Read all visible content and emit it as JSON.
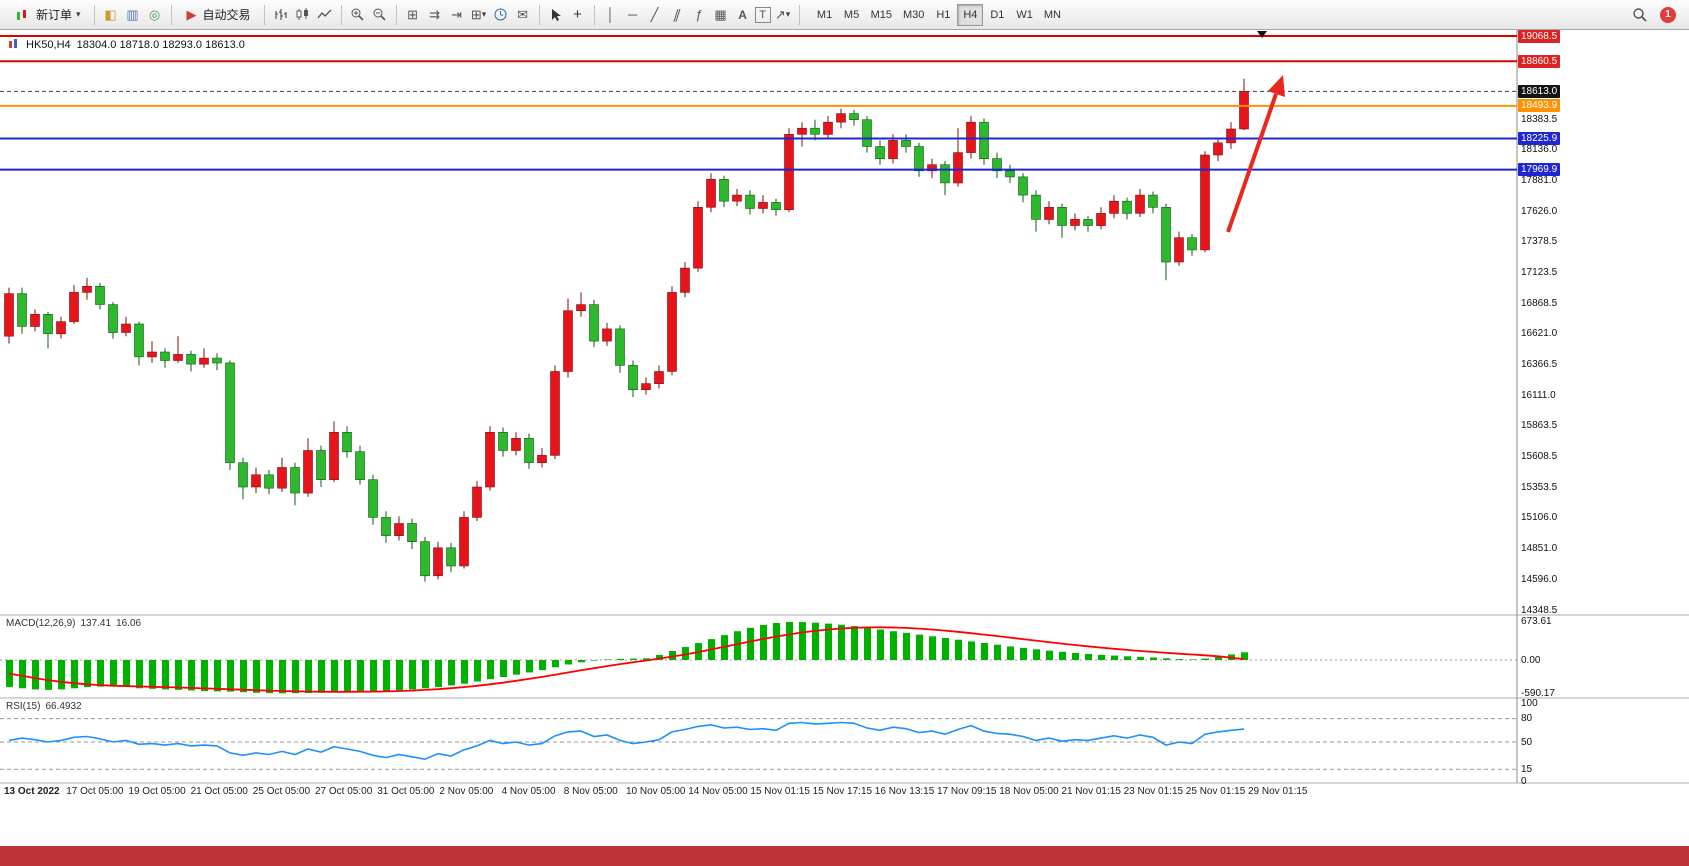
{
  "window": {
    "bottom_bar_color": "#bf3338"
  },
  "toolbar": {
    "new_order_label": "新订单",
    "auto_trading_label": "自动交易",
    "timeframes": [
      "M1",
      "M5",
      "M15",
      "M30",
      "H1",
      "H4",
      "D1",
      "W1",
      "MN"
    ],
    "active_timeframe": "H4",
    "notification_count": "1"
  },
  "chart": {
    "symbol_period": "HK50,H4",
    "ohlc_text": "18304.0 18718.0 18293.0 18613.0"
  },
  "chart_data": {
    "type": "candlestick",
    "symbol": "HK50",
    "timeframe": "H4",
    "last_ohlc": {
      "open": 18304.0,
      "high": 18718.0,
      "low": 18293.0,
      "close": 18613.0
    },
    "current_price": 18613.0,
    "price_axis": {
      "min": 14348.5,
      "max": 19068.5
    },
    "colors": {
      "up": "#e8141c",
      "down": "#2eb82e",
      "level_red": "#e00000",
      "level_orange": "#ff9100",
      "level_blue": "#2026d2",
      "macd_hist": "#00b200",
      "macd_signal": "#ff0000",
      "rsi": "#1e90ff",
      "arrow": "#e8281e"
    },
    "price_labels": [
      {
        "text": "19068.5",
        "price": 19068.5,
        "badge": "red"
      },
      {
        "text": "18860.5",
        "price": 18860.5,
        "badge": "red"
      },
      {
        "text": "18613.0",
        "price": 18613.0,
        "badge": "black"
      },
      {
        "text": "18493.9",
        "price": 18493.9,
        "badge": "orange"
      },
      {
        "text": "18383.5",
        "price": 18383.5,
        "badge": null
      },
      {
        "text": "18225.9",
        "price": 18225.9,
        "badge": "blue"
      },
      {
        "text": "18136.0",
        "price": 18136.0,
        "badge": null
      },
      {
        "text": "17969.9",
        "price": 17969.9,
        "badge": "blue"
      },
      {
        "text": "17881.0",
        "price": 17881.0,
        "badge": null
      },
      {
        "text": "17626.0",
        "price": 17626.0,
        "badge": null
      },
      {
        "text": "17378.5",
        "price": 17378.5,
        "badge": null
      },
      {
        "text": "17123.5",
        "price": 17123.5,
        "badge": null
      },
      {
        "text": "16868.5",
        "price": 16868.5,
        "badge": null
      },
      {
        "text": "16621.0",
        "price": 16621.0,
        "badge": null
      },
      {
        "text": "16366.5",
        "price": 16366.5,
        "badge": null
      },
      {
        "text": "16111.0",
        "price": 16111.0,
        "badge": null
      },
      {
        "text": "15863.5",
        "price": 15863.5,
        "badge": null
      },
      {
        "text": "15608.5",
        "price": 15608.5,
        "badge": null
      },
      {
        "text": "15353.5",
        "price": 15353.5,
        "badge": null
      },
      {
        "text": "15106.0",
        "price": 15106.0,
        "badge": null
      },
      {
        "text": "14851.0",
        "price": 14851.0,
        "badge": null
      },
      {
        "text": "14596.0",
        "price": 14596.0,
        "badge": null
      },
      {
        "text": "14348.5",
        "price": 14348.5,
        "badge": null
      }
    ],
    "levels": [
      {
        "price": 19068.5,
        "color": "#e00000"
      },
      {
        "price": 18860.5,
        "color": "#e00000"
      },
      {
        "price": 18493.9,
        "color": "#ff9100"
      },
      {
        "price": 18225.9,
        "color": "#2026d2"
      },
      {
        "price": 17969.9,
        "color": "#2026d2"
      }
    ],
    "candles": [
      [
        16600,
        17000,
        16540,
        16950
      ],
      [
        16950,
        17000,
        16620,
        16680
      ],
      [
        16680,
        16820,
        16640,
        16780
      ],
      [
        16780,
        16800,
        16500,
        16620
      ],
      [
        16620,
        16760,
        16580,
        16720
      ],
      [
        16720,
        17020,
        16700,
        16960
      ],
      [
        16960,
        17080,
        16900,
        17010
      ],
      [
        17010,
        17040,
        16820,
        16860
      ],
      [
        16860,
        16880,
        16580,
        16630
      ],
      [
        16630,
        16760,
        16600,
        16700
      ],
      [
        16700,
        16720,
        16360,
        16430
      ],
      [
        16430,
        16560,
        16380,
        16470
      ],
      [
        16470,
        16500,
        16340,
        16400
      ],
      [
        16400,
        16600,
        16380,
        16450
      ],
      [
        16450,
        16480,
        16310,
        16370
      ],
      [
        16370,
        16500,
        16340,
        16420
      ],
      [
        16420,
        16460,
        16320,
        16380
      ],
      [
        16380,
        16400,
        15500,
        15560
      ],
      [
        15560,
        15600,
        15260,
        15360
      ],
      [
        15360,
        15520,
        15310,
        15460
      ],
      [
        15460,
        15500,
        15300,
        15350
      ],
      [
        15350,
        15600,
        15320,
        15520
      ],
      [
        15520,
        15560,
        15210,
        15310
      ],
      [
        15310,
        15760,
        15280,
        15660
      ],
      [
        15660,
        15700,
        15360,
        15420
      ],
      [
        15420,
        15900,
        15400,
        15810
      ],
      [
        15810,
        15860,
        15600,
        15650
      ],
      [
        15650,
        15700,
        15380,
        15420
      ],
      [
        15420,
        15460,
        15050,
        15110
      ],
      [
        15110,
        15160,
        14900,
        14960
      ],
      [
        14960,
        15120,
        14920,
        15060
      ],
      [
        15060,
        15100,
        14850,
        14910
      ],
      [
        14910,
        14950,
        14580,
        14630
      ],
      [
        14630,
        14910,
        14600,
        14860
      ],
      [
        14860,
        14900,
        14660,
        14710
      ],
      [
        14710,
        15160,
        14690,
        15110
      ],
      [
        15110,
        15410,
        15080,
        15360
      ],
      [
        15360,
        15860,
        15330,
        15810
      ],
      [
        15810,
        15850,
        15610,
        15660
      ],
      [
        15660,
        15810,
        15620,
        15760
      ],
      [
        15760,
        15800,
        15510,
        15560
      ],
      [
        15560,
        15680,
        15520,
        15620
      ],
      [
        15620,
        16360,
        15590,
        16310
      ],
      [
        16310,
        16910,
        16260,
        16810
      ],
      [
        16810,
        16960,
        16760,
        16860
      ],
      [
        16860,
        16900,
        16510,
        16560
      ],
      [
        16560,
        16710,
        16520,
        16660
      ],
      [
        16660,
        16690,
        16300,
        16360
      ],
      [
        16360,
        16400,
        16100,
        16160
      ],
      [
        16160,
        16260,
        16120,
        16210
      ],
      [
        16210,
        16360,
        16170,
        16310
      ],
      [
        16310,
        17010,
        16280,
        16960
      ],
      [
        16960,
        17210,
        16920,
        17160
      ],
      [
        17160,
        17710,
        17130,
        17660
      ],
      [
        17660,
        17940,
        17620,
        17890
      ],
      [
        17890,
        17920,
        17660,
        17710
      ],
      [
        17710,
        17810,
        17670,
        17760
      ],
      [
        17760,
        17800,
        17600,
        17650
      ],
      [
        17650,
        17760,
        17610,
        17700
      ],
      [
        17700,
        17730,
        17590,
        17640
      ],
      [
        17640,
        18310,
        17620,
        18260
      ],
      [
        18260,
        18360,
        18160,
        18310
      ],
      [
        18310,
        18380,
        18210,
        18260
      ],
      [
        18260,
        18410,
        18220,
        18360
      ],
      [
        18360,
        18470,
        18310,
        18430
      ],
      [
        18430,
        18460,
        18330,
        18380
      ],
      [
        18380,
        18410,
        18110,
        18160
      ],
      [
        18160,
        18210,
        18010,
        18060
      ],
      [
        18060,
        18260,
        18020,
        18210
      ],
      [
        18210,
        18260,
        18110,
        18160
      ],
      [
        18160,
        18190,
        17910,
        17960
      ],
      [
        17960,
        18060,
        17900,
        18010
      ],
      [
        18010,
        18040,
        17760,
        17860
      ],
      [
        17860,
        18310,
        17830,
        18110
      ],
      [
        18110,
        18410,
        18060,
        18360
      ],
      [
        18360,
        18390,
        18010,
        18060
      ],
      [
        18060,
        18110,
        17900,
        17960
      ],
      [
        17960,
        18010,
        17860,
        17910
      ],
      [
        17910,
        17940,
        17700,
        17760
      ],
      [
        17760,
        17800,
        17460,
        17560
      ],
      [
        17560,
        17710,
        17520,
        17660
      ],
      [
        17660,
        17690,
        17410,
        17510
      ],
      [
        17510,
        17610,
        17470,
        17560
      ],
      [
        17560,
        17590,
        17460,
        17510
      ],
      [
        17510,
        17660,
        17480,
        17610
      ],
      [
        17610,
        17760,
        17570,
        17710
      ],
      [
        17710,
        17740,
        17560,
        17610
      ],
      [
        17610,
        17810,
        17580,
        17760
      ],
      [
        17760,
        17790,
        17610,
        17660
      ],
      [
        17660,
        17690,
        17060,
        17210
      ],
      [
        17210,
        17460,
        17180,
        17410
      ],
      [
        17410,
        17440,
        17260,
        17310
      ],
      [
        17310,
        18120,
        17290,
        18090
      ],
      [
        18090,
        18230,
        18040,
        18190
      ],
      [
        18190,
        18360,
        18140,
        18304
      ],
      [
        18304,
        18718,
        18293,
        18613
      ]
    ],
    "macd": {
      "name": "MACD(12,26,9)",
      "main_value": "137.41",
      "signal_value": "16.06",
      "axis_labels": [
        "673.61",
        "0.00",
        "-590.17"
      ],
      "histogram": [
        -480,
        -500,
        -520,
        -530,
        -520,
        -500,
        -480,
        -470,
        -470,
        -480,
        -500,
        -510,
        -520,
        -530,
        -540,
        -550,
        -555,
        -560,
        -570,
        -580,
        -585,
        -590,
        -588,
        -585,
        -580,
        -575,
        -570,
        -565,
        -560,
        -550,
        -535,
        -520,
        -500,
        -480,
        -450,
        -420,
        -380,
        -340,
        -300,
        -260,
        -220,
        -180,
        -130,
        -80,
        -40,
        -10,
        10,
        20,
        25,
        30,
        90,
        160,
        230,
        300,
        370,
        440,
        510,
        570,
        620,
        655,
        672,
        670,
        660,
        645,
        625,
        600,
        570,
        540,
        510,
        480,
        450,
        420,
        390,
        360,
        330,
        300,
        270,
        240,
        215,
        190,
        165,
        145,
        125,
        108,
        92,
        78,
        65,
        55,
        45,
        30,
        18,
        10,
        25,
        60,
        100,
        137
      ],
      "signal": [
        -240,
        -280,
        -320,
        -355,
        -385,
        -410,
        -430,
        -445,
        -455,
        -462,
        -468,
        -474,
        -480,
        -487,
        -494,
        -502,
        -510,
        -518,
        -526,
        -534,
        -542,
        -549,
        -554,
        -558,
        -561,
        -562,
        -562,
        -561,
        -559,
        -555,
        -549,
        -541,
        -530,
        -516,
        -499,
        -479,
        -456,
        -430,
        -401,
        -369,
        -335,
        -299,
        -261,
        -222,
        -183,
        -145,
        -108,
        -73,
        -40,
        -8,
        25,
        60,
        98,
        140,
        185,
        232,
        280,
        327,
        372,
        414,
        452,
        486,
        515,
        539,
        557,
        570,
        577,
        579,
        576,
        568,
        556,
        540,
        521,
        499,
        475,
        450,
        424,
        397,
        370,
        343,
        317,
        291,
        266,
        243,
        220,
        199,
        179,
        160,
        143,
        127,
        112,
        98,
        84,
        66,
        42,
        16
      ]
    },
    "rsi": {
      "name": "RSI(15)",
      "value": "66.4932",
      "axis_labels": [
        "100",
        "80",
        "50",
        "15",
        "0"
      ],
      "guide_levels": [
        80,
        50,
        15
      ],
      "values": [
        52,
        55,
        53,
        50,
        52,
        56,
        57,
        54,
        50,
        52,
        47,
        48,
        46,
        48,
        45,
        46,
        45,
        36,
        33,
        36,
        34,
        38,
        34,
        41,
        37,
        44,
        41,
        38,
        33,
        30,
        34,
        31,
        28,
        35,
        32,
        40,
        45,
        52,
        48,
        50,
        46,
        48,
        58,
        63,
        64,
        57,
        59,
        52,
        48,
        50,
        53,
        63,
        66,
        70,
        72,
        68,
        69,
        66,
        67,
        65,
        74,
        75,
        73,
        74,
        75,
        74,
        68,
        65,
        69,
        67,
        62,
        64,
        60,
        66,
        71,
        64,
        61,
        60,
        57,
        52,
        55,
        51,
        53,
        52,
        55,
        58,
        55,
        59,
        56,
        46,
        50,
        48,
        60,
        63,
        65,
        66.4932
      ]
    },
    "time_labels": [
      "13 Oct 2022",
      "17 Oct 05:00",
      "19 Oct 05:00",
      "21 Oct 05:00",
      "25 Oct 05:00",
      "27 Oct 05:00",
      "31 Oct 05:00",
      "2 Nov 05:00",
      "4 Nov 05:00",
      "8 Nov 05:00",
      "10 Nov 05:00",
      "14 Nov 05:00",
      "15 Nov 01:15",
      "15 Nov 17:15",
      "16 Nov 13:15",
      "17 Nov 09:15",
      "18 Nov 05:00",
      "21 Nov 01:15",
      "23 Nov 01:15",
      "25 Nov 01:15",
      "29 Nov 01:15"
    ]
  }
}
